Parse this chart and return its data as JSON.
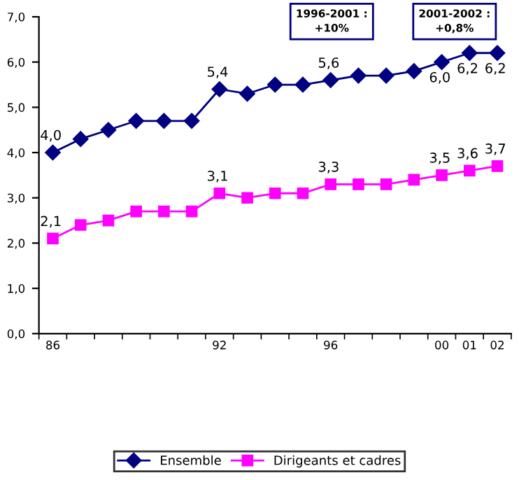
{
  "chart_data": {
    "type": "line",
    "categories": [
      "86",
      null,
      null,
      null,
      null,
      null,
      "92",
      null,
      null,
      null,
      "96",
      null,
      null,
      null,
      "00",
      "01",
      "02"
    ],
    "series": [
      {
        "name": "Ensemble",
        "color": "#000080",
        "marker": "diamond",
        "values": [
          4.0,
          4.3,
          4.5,
          4.7,
          4.7,
          4.7,
          5.4,
          5.3,
          5.5,
          5.5,
          5.6,
          5.7,
          5.7,
          5.8,
          6.0,
          6.2,
          6.2
        ],
        "value_labels": [
          "4,0",
          null,
          null,
          null,
          null,
          null,
          "5,4",
          null,
          null,
          null,
          "5,6",
          null,
          null,
          null,
          "6,0",
          "6,2",
          "6,2"
        ]
      },
      {
        "name": "Dirigeants et cadres",
        "color": "#ff00ff",
        "marker": "square",
        "values": [
          2.1,
          2.4,
          2.5,
          2.7,
          2.7,
          2.7,
          3.1,
          3.0,
          3.1,
          3.1,
          3.3,
          3.3,
          3.3,
          3.4,
          3.5,
          3.6,
          3.7
        ],
        "value_labels": [
          "2,1",
          null,
          null,
          null,
          null,
          null,
          "3,1",
          null,
          null,
          null,
          "3,3",
          null,
          null,
          null,
          "3,5",
          "3,6",
          "3,7"
        ]
      }
    ],
    "ylim": [
      0,
      7
    ],
    "yticks": [
      {
        "value": 0,
        "label": "0,0"
      },
      {
        "value": 1,
        "label": "1,0"
      },
      {
        "value": 2,
        "label": "2,0"
      },
      {
        "value": 3,
        "label": "3,0"
      },
      {
        "value": 4,
        "label": "4,0"
      },
      {
        "value": 5,
        "label": "5,0"
      },
      {
        "value": 6,
        "label": "6,0"
      },
      {
        "value": 7,
        "label": "7,0"
      }
    ],
    "annotations": [
      "1996-2001 :\n+10%",
      "2001-2002 :\n+0,8%"
    ],
    "legend": "bottom",
    "grid": false,
    "line_style": "solid"
  }
}
